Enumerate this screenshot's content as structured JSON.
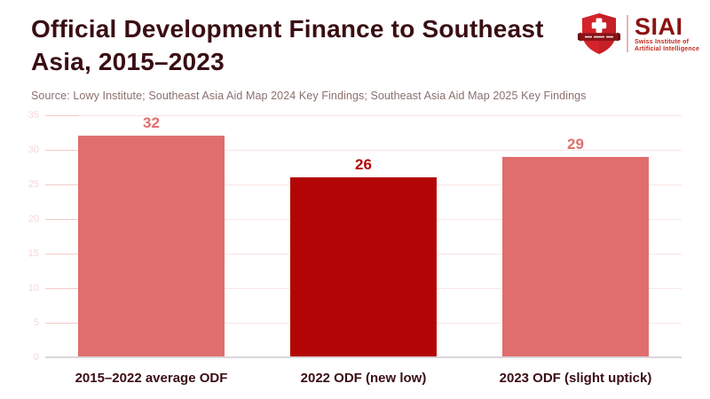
{
  "header": {
    "title_lines": [
      "Official Development Finance to Southeast",
      "Asia, 2015–2023"
    ],
    "source_line": "Source: Lowy Institute; Southeast Asia Aid Map 2024 Key Findings; Southeast Asia Aid Map 2025 Key Findings"
  },
  "logo": {
    "acronym": "SIAI",
    "subtitle_line1": "Swiss Institute of",
    "subtitle_line2": "Artificial Intelligence",
    "shield_icon": "swiss-shield-cross-banner-icon",
    "colors": {
      "shield_red": "#d5232b",
      "banner_dark_red": "#871317",
      "acronym_red": "#8c1212",
      "subtitle_red": "#c3261b",
      "divider_pink": "#e8b4b4"
    }
  },
  "chart_data": {
    "type": "bar",
    "title": "Official Development Finance to Southeast Asia, 2015–2023",
    "categories": [
      "2015–2022 average ODF",
      "2022 ODF (new low)",
      "2023 ODF (slight uptick)"
    ],
    "values": [
      32,
      26,
      29
    ],
    "value_labels": [
      "32",
      "26",
      "29"
    ],
    "bar_colors": [
      "#e06e6e",
      "#b30505",
      "#e06e6e"
    ],
    "xlabel": "",
    "ylabel": "",
    "ylim": [
      0,
      35
    ],
    "yticks": [
      0,
      5,
      10,
      15,
      20,
      25,
      30,
      35
    ],
    "grid": true,
    "legend": "none"
  },
  "colors": {
    "background": "#ffffff",
    "title_text": "#3a0e13",
    "source_text": "#8d6f6f",
    "gridline": "#f9e7e5",
    "tick_mark": "#f5c9c9",
    "tick_label": "#f8d6d6",
    "axis_line": "#dbd5da",
    "category_label": "#3a0e13"
  }
}
